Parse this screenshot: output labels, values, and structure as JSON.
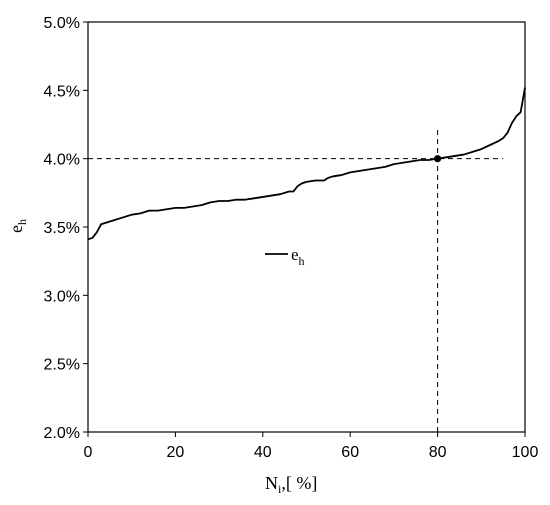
{
  "chart_data": {
    "type": "line",
    "xlabel": {
      "main": "N",
      "sub": "i",
      "suffix": ",[ %]"
    },
    "ylabel": {
      "main": "e",
      "sub": "h"
    },
    "xlim": [
      0,
      100
    ],
    "ylim": [
      0.02,
      0.05
    ],
    "x_ticks": [
      0,
      20,
      40,
      60,
      80,
      100
    ],
    "x_tick_labels": [
      "0",
      "20",
      "40",
      "60",
      "80",
      "100"
    ],
    "y_ticks": [
      0.02,
      0.025,
      0.03,
      0.035,
      0.04,
      0.045,
      0.05
    ],
    "y_tick_labels": [
      "2.0%",
      "2.5%",
      "3.0%",
      "3.5%",
      "4.0%",
      "4.5%",
      "5.0%"
    ],
    "grid": false,
    "legend": {
      "placement": "center-left",
      "entries": [
        {
          "main": "e",
          "sub": "h"
        }
      ]
    },
    "series": [
      {
        "name": "e_h",
        "color": "#000000",
        "x": [
          0,
          1,
          2,
          3,
          4,
          5,
          6,
          8,
          10,
          12,
          13,
          14,
          16,
          18,
          20,
          22,
          24,
          26,
          28,
          30,
          32,
          34,
          36,
          38,
          40,
          42,
          44,
          46,
          47,
          48,
          49,
          50,
          52,
          54,
          55,
          56,
          58,
          60,
          62,
          64,
          66,
          68,
          70,
          72,
          74,
          76,
          78,
          80,
          82,
          84,
          86,
          88,
          90,
          92,
          94,
          95,
          96,
          97,
          98,
          99,
          100
        ],
        "values": [
          0.0341,
          0.0342,
          0.0346,
          0.0352,
          0.0353,
          0.0354,
          0.0355,
          0.0357,
          0.0359,
          0.036,
          0.0361,
          0.0362,
          0.0362,
          0.0363,
          0.0364,
          0.0364,
          0.0365,
          0.0366,
          0.0368,
          0.0369,
          0.0369,
          0.037,
          0.037,
          0.0371,
          0.0372,
          0.0373,
          0.0374,
          0.0376,
          0.0376,
          0.038,
          0.0382,
          0.0383,
          0.0384,
          0.0384,
          0.0386,
          0.0387,
          0.0388,
          0.039,
          0.0391,
          0.0392,
          0.0393,
          0.0394,
          0.0396,
          0.0397,
          0.0398,
          0.0399,
          0.0399,
          0.04,
          0.0401,
          0.0402,
          0.0403,
          0.0405,
          0.0407,
          0.041,
          0.0413,
          0.0415,
          0.0419,
          0.0426,
          0.0431,
          0.0434,
          0.0452
        ]
      }
    ],
    "annotations": {
      "marker_point": {
        "x": 80,
        "y": 0.04
      },
      "hline": {
        "y": 0.04,
        "x_from": 0,
        "x_to": 95
      },
      "vline": {
        "x": 80,
        "y_from": 0.02,
        "y_to": 0.0423
      }
    }
  }
}
